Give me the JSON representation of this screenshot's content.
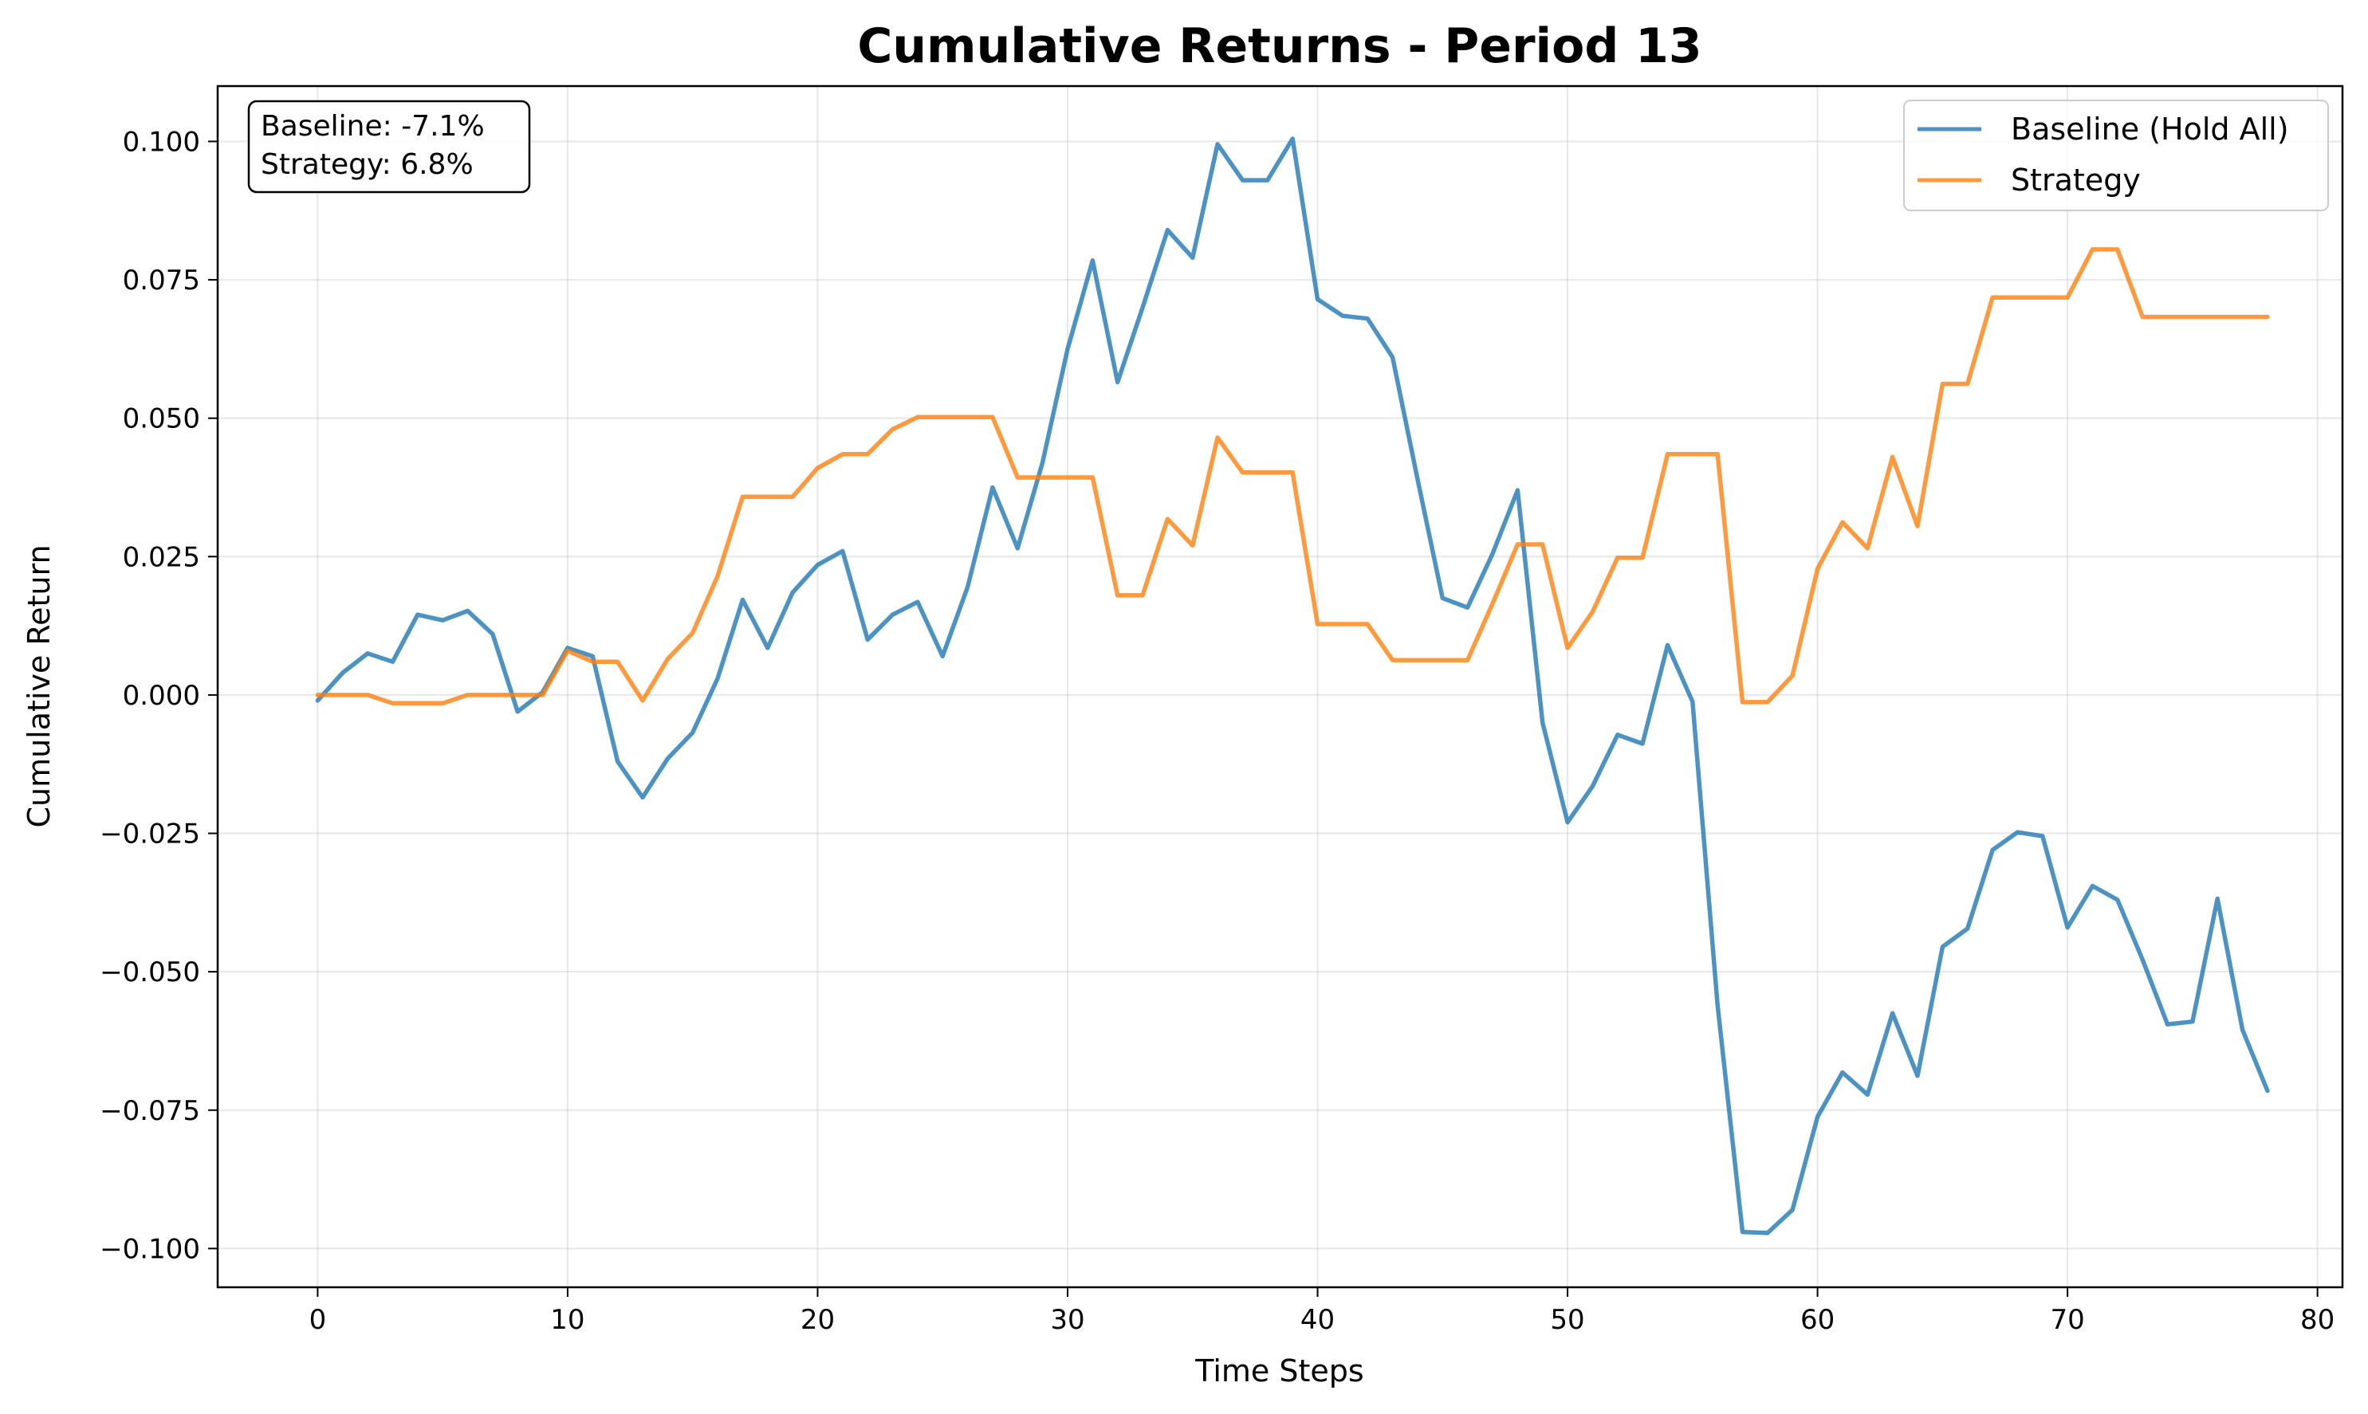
{
  "chart_data": {
    "type": "line",
    "title": "Cumulative Returns - Period 13",
    "xlabel": "Time Steps",
    "ylabel": "Cumulative Return",
    "xlim": [
      -4,
      81
    ],
    "ylim": [
      -0.107,
      0.11
    ],
    "xticks": [
      0,
      10,
      20,
      30,
      40,
      50,
      60,
      70,
      80
    ],
    "xtick_labels": [
      "0",
      "10",
      "20",
      "30",
      "40",
      "50",
      "60",
      "70",
      "80"
    ],
    "yticks": [
      -0.1,
      -0.075,
      -0.05,
      -0.025,
      0.0,
      0.025,
      0.05,
      0.075,
      0.1
    ],
    "ytick_labels": [
      "−0.100",
      "−0.075",
      "−0.050",
      "−0.025",
      "0.000",
      "0.025",
      "0.050",
      "0.075",
      "0.100"
    ],
    "grid": true,
    "legend_position": "top-right",
    "annotation": [
      "Baseline: -7.1%",
      "Strategy: 6.8%"
    ],
    "series": [
      {
        "name": "Baseline (Hold All)",
        "color": "#1f77b4",
        "values": [
          -0.001,
          0.004,
          0.0075,
          0.006,
          0.0145,
          0.0135,
          0.0152,
          0.011,
          -0.003,
          0.0005,
          0.0085,
          0.007,
          -0.012,
          -0.0185,
          -0.0115,
          -0.0068,
          0.003,
          0.0172,
          0.0085,
          0.0185,
          0.0235,
          0.026,
          0.01,
          0.0145,
          0.0168,
          0.007,
          0.0195,
          0.0375,
          0.0265,
          0.042,
          0.0625,
          0.0785,
          0.0565,
          0.07,
          0.084,
          0.079,
          0.0995,
          0.093,
          0.093,
          0.1005,
          0.0715,
          0.0685,
          0.068,
          0.061,
          0.039,
          0.0175,
          0.0158,
          0.0255,
          0.037,
          -0.005,
          -0.023,
          -0.0165,
          -0.0072,
          -0.0088,
          0.009,
          -0.0012,
          -0.056,
          -0.097,
          -0.0972,
          -0.093,
          -0.0762,
          -0.0682,
          -0.0722,
          -0.0575,
          -0.0688,
          -0.0455,
          -0.0422,
          -0.028,
          -0.0248,
          -0.0255,
          -0.042,
          -0.0345,
          -0.037,
          -0.0478,
          -0.0595,
          -0.059,
          -0.0368,
          -0.0605,
          -0.0715
        ]
      },
      {
        "name": "Strategy",
        "color": "#ff7f0e",
        "values": [
          0.0,
          0.0,
          0.0,
          -0.0015,
          -0.0015,
          -0.0015,
          0.0,
          0.0,
          0.0,
          0.0,
          0.008,
          0.006,
          0.006,
          -0.001,
          0.0065,
          0.0112,
          0.0215,
          0.0358,
          0.0358,
          0.0358,
          0.041,
          0.0435,
          0.0435,
          0.048,
          0.0502,
          0.0502,
          0.0502,
          0.0502,
          0.0393,
          0.0393,
          0.0393,
          0.0393,
          0.018,
          0.018,
          0.0318,
          0.027,
          0.0465,
          0.0402,
          0.0402,
          0.0402,
          0.0128,
          0.0128,
          0.0128,
          0.0063,
          0.0063,
          0.0063,
          0.0063,
          0.0165,
          0.0272,
          0.0272,
          0.0085,
          0.015,
          0.0248,
          0.0248,
          0.0435,
          0.0435,
          0.0435,
          -0.0013,
          -0.0013,
          0.0035,
          0.0228,
          0.0312,
          0.0265,
          0.043,
          0.0305,
          0.0562,
          0.0562,
          0.0718,
          0.0718,
          0.0718,
          0.0718,
          0.0805,
          0.0805,
          0.0683,
          0.0683,
          0.0683,
          0.0683,
          0.0683,
          0.0683
        ]
      }
    ]
  }
}
